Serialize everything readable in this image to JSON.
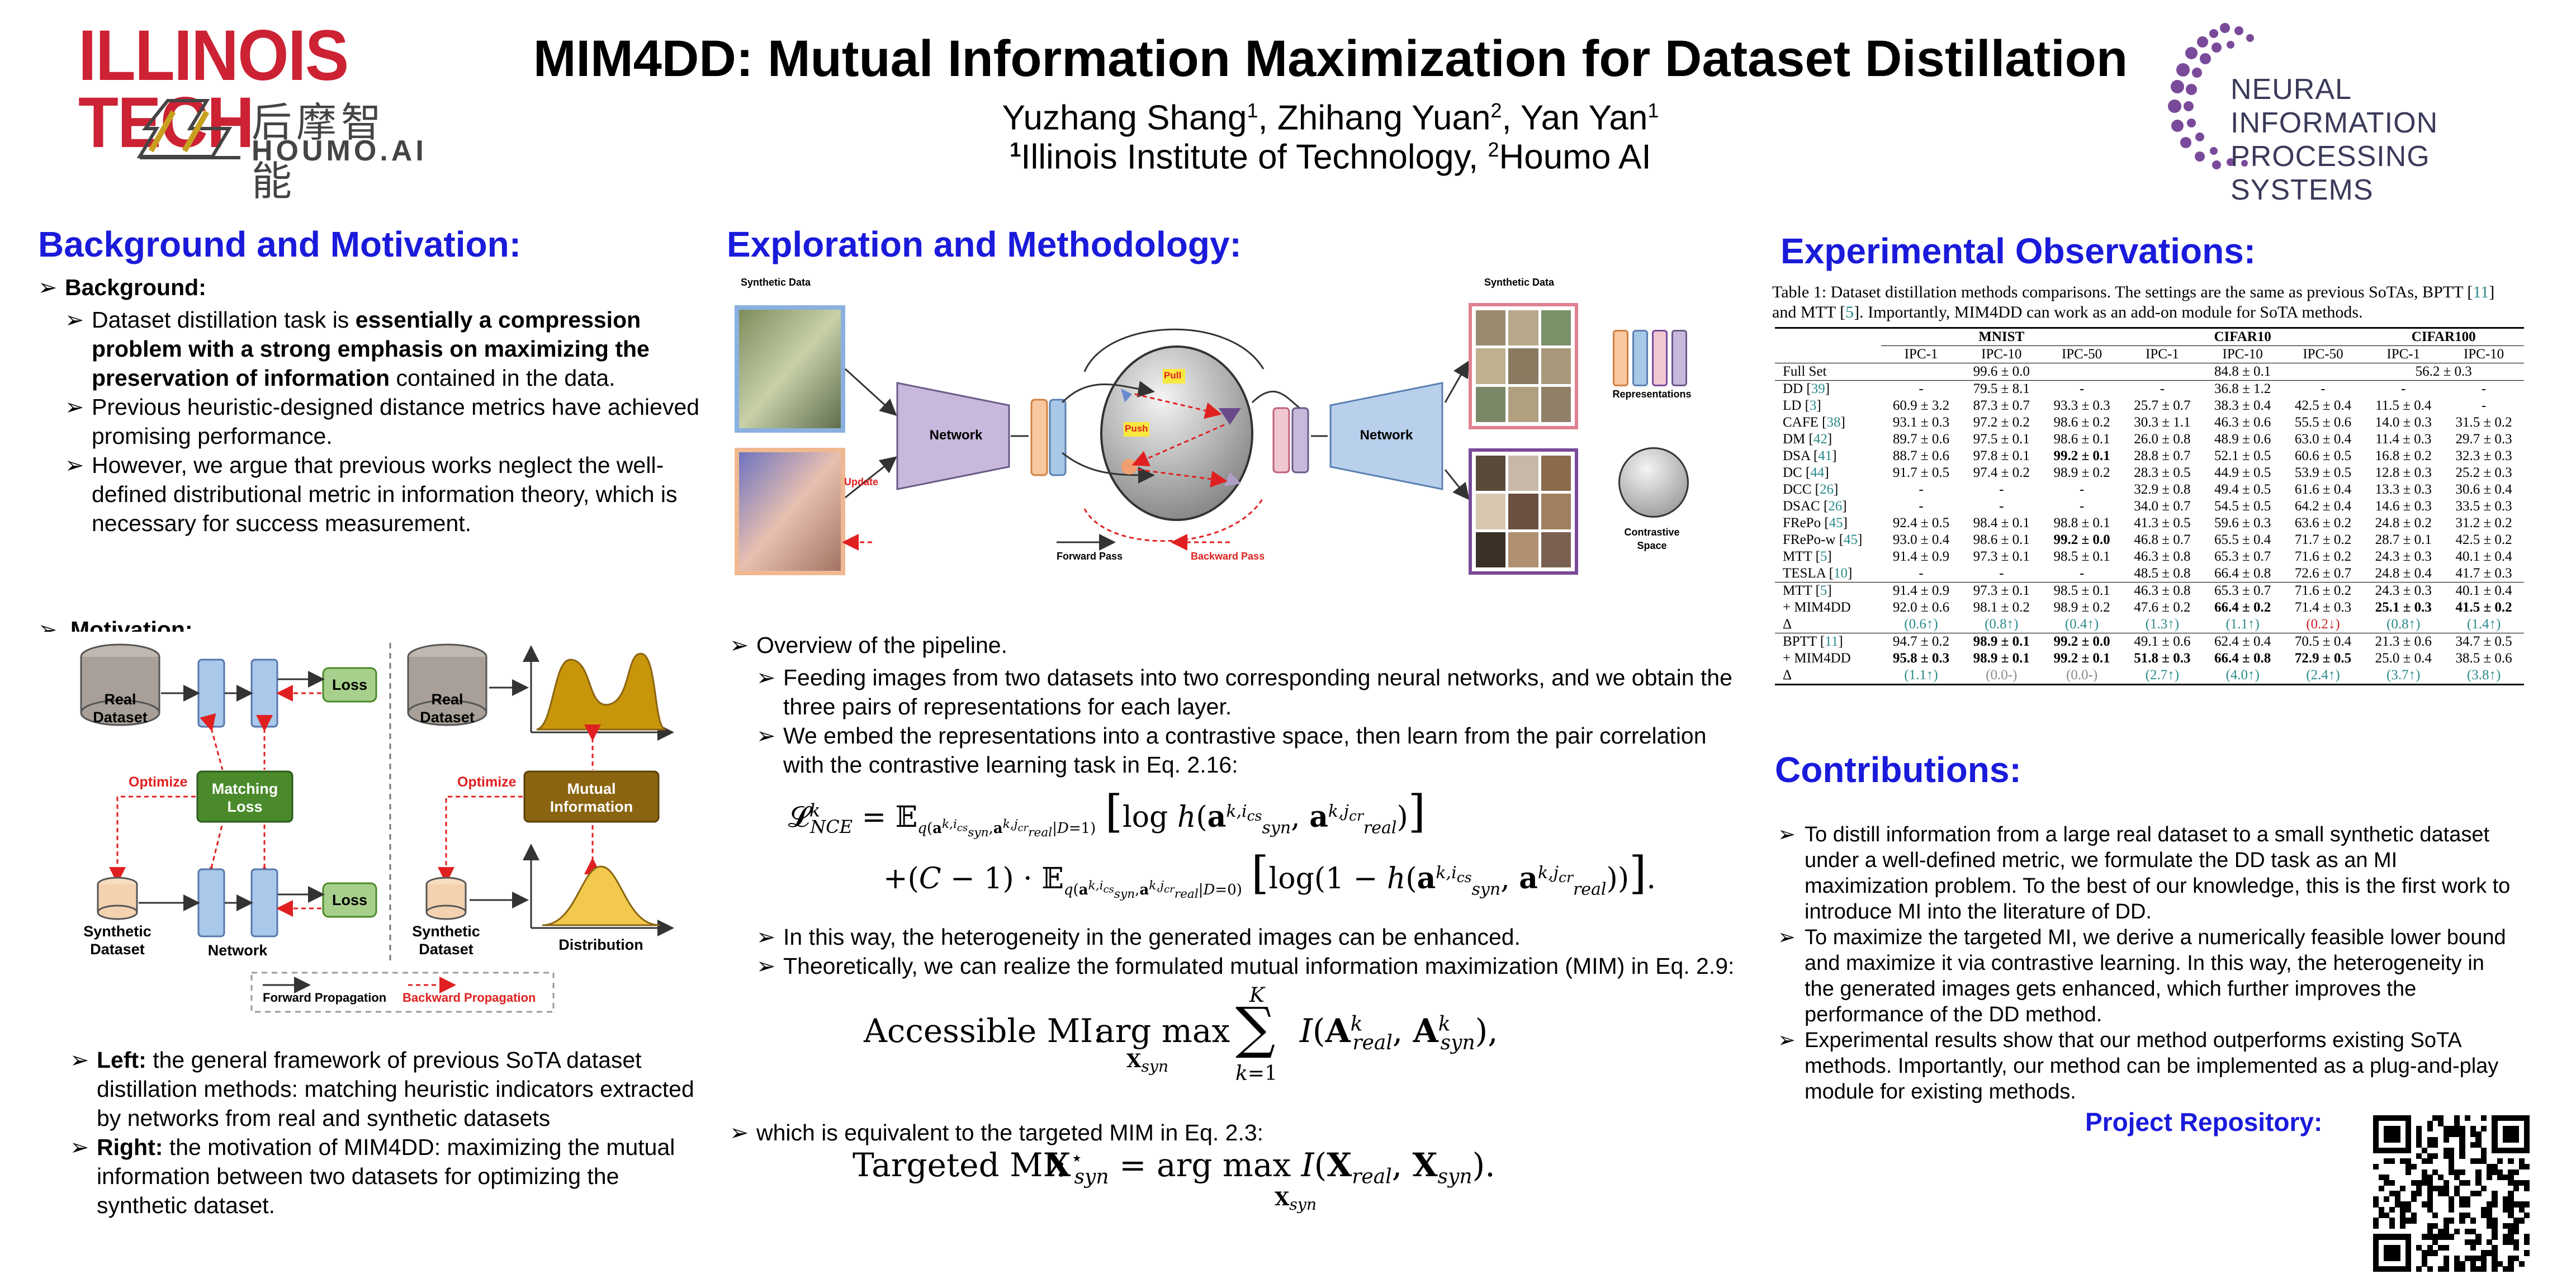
{
  "header": {
    "logo_left": "ILLINOIS TECH",
    "logo_houmo_cn": "后摩智能",
    "logo_houmo_en": "HOUMO.AI",
    "title": "MIM4DD: Mutual Information Maximization for Dataset Distillation",
    "authors_1": "Yuzhang Shang",
    "authors_1_sup": "1",
    "authors_2": ", Zhihang Yuan",
    "authors_2_sup": "2",
    "authors_3": ", Yan Yan",
    "authors_3_sup": "1",
    "affil_sup1": "1",
    "affil_1": "Illinois Institute of Technology, ",
    "affil_sup2": "2",
    "affil_2": "Houmo AI",
    "logo_right_line1": "NEURAL INFORMATION",
    "logo_right_line2": "PROCESSING SYSTEMS"
  },
  "left": {
    "heading": "Background and Motivation:",
    "background_label": "Background:",
    "b1_pre": "Dataset distillation task is ",
    "b1_bold": "essentially a compression problem with a strong emphasis on maximizing the preservation of information",
    "b1_post": " contained in the data.",
    "b2": "Previous heuristic-designed distance metrics have achieved promising performance.",
    "b3": "However, we argue that previous works neglect the well-defined distributional metric in information theory, which is necessary for success measurement.",
    "motivation_label": "Motivation:",
    "fig": {
      "real_dataset": "Real Dataset",
      "loss": "Loss",
      "optimize": "Optimize",
      "matching_loss": "Matching Loss",
      "mutual_information": "Mutual Information",
      "synthetic_dataset": "Synthetic Dataset",
      "network": "Network",
      "distribution": "Distribution",
      "forward_prop": "Forward Propagation",
      "backward_prop": "Backward Propagation"
    },
    "left_label": "Left:",
    "left_text": " the general framework of previous SoTA dataset distillation methods: matching heuristic indicators extracted by networks from real and synthetic datasets",
    "right_label": "Right:",
    "right_text": " the motivation of MIM4DD: maximizing the mutual information between two datasets for optimizing the synthetic dataset."
  },
  "middle": {
    "heading": "Exploration and Methodology:",
    "fig": {
      "synthetic_data": "Synthetic Data",
      "network": "Network",
      "update": "Update",
      "pull": "Pull",
      "push": "Push",
      "representations": "Representations",
      "contrastive_space": "Contrastive Space",
      "forward_pass": "Forward Pass",
      "backward_pass": "Backward Pass"
    },
    "overview": "Overview of the pipeline.",
    "p1": "Feeding images from two datasets into two corresponding neural networks, and we obtain the three pairs of representations for each layer.",
    "p2": "We embed the representations into a contrastive space, then learn from the pair correlation with the contrastive learning task in Eq. 2.16:",
    "p3": "In this way, the heterogeneity in the generated images can be enhanced.",
    "p4": "Theoretically, we can realize the formulated mutual information maximization (MIM) in Eq. 2.9:",
    "eq2_prefix": "Accessible MI:",
    "p5": "which is equivalent to the targeted MIM in Eq. 2.3:",
    "eq3_prefix": "Targeted MI:"
  },
  "right": {
    "heading": "Experimental Observations:",
    "caption_pre": "Table 1: Dataset distillation methods comparisons. The settings are the same as previous SoTAs, BPTT [",
    "caption_c1": "11",
    "caption_mid": "] and MTT [",
    "caption_c2": "5",
    "caption_post": "]. Importantly, MIM4DD can work as an add-on module for SoTA methods.",
    "groups": [
      "MNIST",
      "CIFAR10",
      "CIFAR100"
    ],
    "cols": [
      "IPC-1",
      "IPC-10",
      "IPC-50",
      "IPC-1",
      "IPC-10",
      "IPC-50",
      "IPC-1",
      "IPC-10"
    ],
    "fullset": {
      "name": "Full Set",
      "mnist": "99.6 ± 0.0",
      "cifar10": "84.8 ± 0.1",
      "cifar100": "56.2 ± 0.3"
    },
    "rows": [
      {
        "name": "DD",
        "cite": "39",
        "v": [
          "-",
          "79.5 ± 8.1",
          "-",
          "-",
          "36.8 ± 1.2",
          "-",
          "-",
          "-"
        ]
      },
      {
        "name": "LD",
        "cite": "3",
        "v": [
          "60.9 ± 3.2",
          "87.3 ± 0.7",
          "93.3 ± 0.3",
          "25.7 ± 0.7",
          "38.3 ± 0.4",
          "42.5 ± 0.4",
          "11.5 ± 0.4",
          "-"
        ]
      },
      {
        "name": "CAFE",
        "cite": "38",
        "v": [
          "93.1 ± 0.3",
          "97.2 ± 0.2",
          "98.6 ± 0.2",
          "30.3 ± 1.1",
          "46.3 ± 0.6",
          "55.5 ± 0.6",
          "14.0 ± 0.3",
          "31.5 ± 0.2"
        ]
      },
      {
        "name": "DM",
        "cite": "42",
        "v": [
          "89.7 ± 0.6",
          "97.5 ± 0.1",
          "98.6 ± 0.1",
          "26.0 ± 0.8",
          "48.9 ± 0.6",
          "63.0 ± 0.4",
          "11.4 ± 0.3",
          "29.7 ± 0.3"
        ]
      },
      {
        "name": "DSA",
        "cite": "41",
        "v": [
          "88.7 ± 0.6",
          "97.8 ± 0.1",
          "99.2 ± 0.1",
          "28.8 ± 0.7",
          "52.1 ± 0.5",
          "60.6 ± 0.5",
          "16.8 ± 0.2",
          "32.3 ± 0.3"
        ],
        "bold": [
          2
        ]
      },
      {
        "name": "DC",
        "cite": "44",
        "v": [
          "91.7 ± 0.5",
          "97.4 ± 0.2",
          "98.9 ± 0.2",
          "28.3 ± 0.5",
          "44.9 ± 0.5",
          "53.9 ± 0.5",
          "12.8 ± 0.3",
          "25.2 ± 0.3"
        ]
      },
      {
        "name": "DCC",
        "cite": "26",
        "v": [
          "-",
          "-",
          "-",
          "32.9 ± 0.8",
          "49.4 ± 0.5",
          "61.6 ± 0.4",
          "13.3 ± 0.3",
          "30.6 ± 0.4"
        ]
      },
      {
        "name": "DSAC",
        "cite": "26",
        "v": [
          "-",
          "-",
          "-",
          "34.0 ± 0.7",
          "54.5 ± 0.5",
          "64.2 ± 0.4",
          "14.6 ± 0.3",
          "33.5 ± 0.3"
        ]
      },
      {
        "name": "FRePo",
        "cite": "45",
        "v": [
          "92.4 ± 0.5",
          "98.4 ± 0.1",
          "98.8 ± 0.1",
          "41.3 ± 0.5",
          "59.6 ± 0.3",
          "63.6 ± 0.2",
          "24.8 ± 0.2",
          "31.2 ± 0.2"
        ]
      },
      {
        "name": "FRePo-w",
        "cite": "45",
        "v": [
          "93.0 ± 0.4",
          "98.6 ± 0.1",
          "99.2 ± 0.0",
          "46.8 ± 0.7",
          "65.5 ± 0.4",
          "71.7 ± 0.2",
          "28.7 ± 0.1",
          "42.5 ± 0.2"
        ],
        "bold": [
          2
        ]
      },
      {
        "name": "MTT",
        "cite": "5",
        "v": [
          "91.4 ± 0.9",
          "97.3 ± 0.1",
          "98.5 ± 0.1",
          "46.3 ± 0.8",
          "65.3 ± 0.7",
          "71.6 ± 0.2",
          "24.3 ± 0.3",
          "40.1 ± 0.4"
        ]
      },
      {
        "name": "TESLA",
        "cite": "10",
        "v": [
          "-",
          "-",
          "-",
          "48.5 ± 0.8",
          "66.4 ± 0.8",
          "72.6 ± 0.7",
          "24.8 ± 0.4",
          "41.7 ± 0.3"
        ]
      }
    ],
    "block2": [
      {
        "name": "MTT",
        "cite": "5",
        "v": [
          "91.4 ± 0.9",
          "97.3 ± 0.1",
          "98.5 ± 0.1",
          "46.3 ± 0.8",
          "65.3 ± 0.7",
          "71.6 ± 0.2",
          "24.3 ± 0.3",
          "40.1 ± 0.4"
        ]
      },
      {
        "name": "+ MIM4DD",
        "v": [
          "92.0 ± 0.6",
          "98.1 ± 0.2",
          "98.9 ± 0.2",
          "47.6 ± 0.2",
          "66.4 ± 0.2",
          "71.4 ± 0.3",
          "25.1 ± 0.3",
          "41.5 ± 0.2"
        ],
        "bold": [
          4,
          6,
          7
        ]
      },
      {
        "name": "Δ",
        "delta": true,
        "v": [
          "(0.6↑)",
          "(0.8↑)",
          "(0.4↑)",
          "(1.3↑)",
          "(1.1↑)",
          "(0.2↓)",
          "(0.8↑)",
          "(1.4↑)"
        ]
      }
    ],
    "block3": [
      {
        "name": "BPTT",
        "cite": "11",
        "v": [
          "94.7 ± 0.2",
          "98.9 ± 0.1",
          "99.2 ± 0.0",
          "49.1 ± 0.6",
          "62.4 ± 0.4",
          "70.5 ± 0.4",
          "21.3 ± 0.6",
          "34.7 ± 0.5"
        ],
        "bold": [
          1,
          2
        ]
      },
      {
        "name": "+ MIM4DD",
        "v": [
          "95.8 ± 0.3",
          "98.9 ± 0.1",
          "99.2 ± 0.1",
          "51.8 ± 0.3",
          "66.4 ± 0.8",
          "72.9 ± 0.5",
          "25.0 ± 0.4",
          "38.5 ± 0.6"
        ],
        "bold": [
          0,
          1,
          2,
          3,
          4,
          5
        ]
      },
      {
        "name": "Δ",
        "delta": true,
        "v": [
          "(1.1↑)",
          "(0.0-)",
          "(0.0-)",
          "(2.7↑)",
          "(4.0↑)",
          "(2.4↑)",
          "(3.7↑)",
          "(3.8↑)"
        ]
      }
    ],
    "contrib_heading": "Contributions:",
    "c1": "To distill information from a large real dataset to a small synthetic dataset under a well-defined metric, we formulate the DD task as an MI maximization problem. To the best of our knowledge, this is the first work to introduce MI into the literature of DD.",
    "c2": "To maximize the targeted MI, we derive a numerically feasible lower bound and maximize it via contrastive learning. In this way, the heterogeneity in the generated images gets enhanced, which further improves the performance of the DD method.",
    "c3": "Experimental results show that our method outperforms existing SoTA methods. Importantly, our method can be implemented as a plug-and-play module for existing methods.",
    "repo": "Project Repository:"
  },
  "colors": {
    "heading_blue": "#1a1adb",
    "illinois_red": "#cc2233",
    "matching_green": "#4a8a2a",
    "mi_brown": "#8a6410",
    "loss_green": "#a8d08d",
    "net_blue": "#a9c8ea"
  }
}
